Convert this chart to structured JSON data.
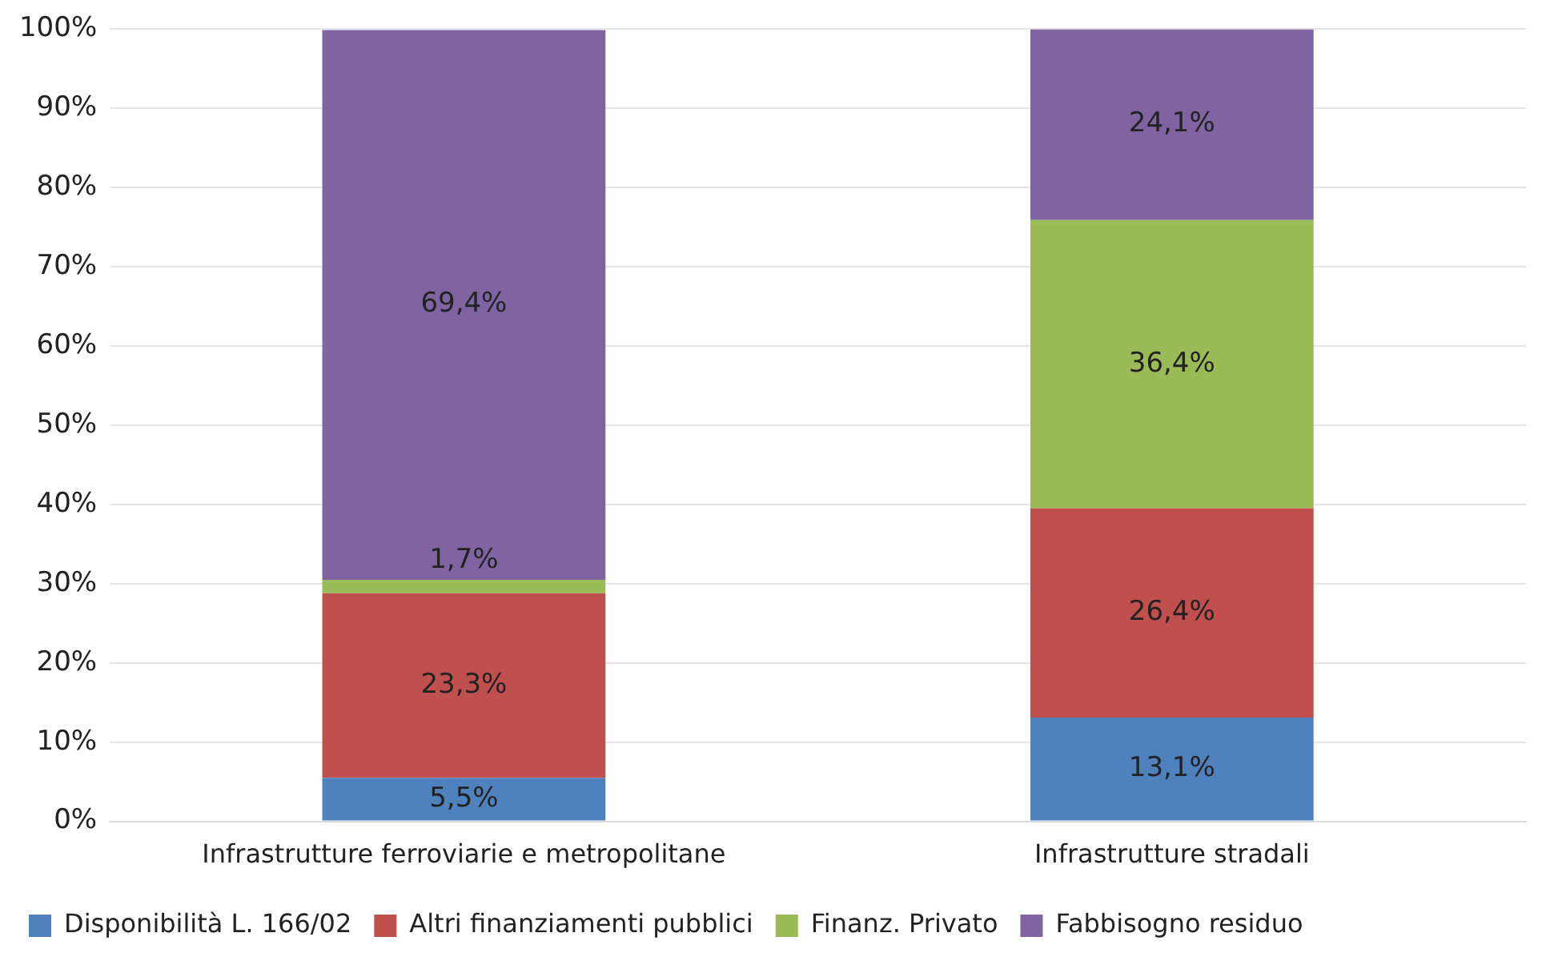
{
  "chart_data": {
    "type": "bar",
    "stacked": true,
    "categories": [
      "Infrastrutture ferroviarie e metropolitane",
      "Infrastrutture stradali"
    ],
    "series": [
      {
        "name": "Disponibilità L. 166/02",
        "color": "#4f81bd",
        "values": [
          5.5,
          13.1
        ],
        "value_labels": [
          "5,5%",
          "13,1%"
        ]
      },
      {
        "name": "Altri finanziamenti pubblici",
        "color": "#c0504d",
        "values": [
          23.3,
          26.4
        ],
        "value_labels": [
          "23,3%",
          "26,4%"
        ]
      },
      {
        "name": "Finanz. Privato",
        "color": "#9bbb59",
        "values": [
          1.7,
          36.4
        ],
        "value_labels": [
          "1,7%",
          "36,4%"
        ]
      },
      {
        "name": "Fabbisogno residuo",
        "color": "#8064a2",
        "values": [
          69.4,
          24.1
        ],
        "value_labels": [
          "69,4%",
          "24,1%"
        ]
      }
    ],
    "ylim": [
      0,
      100
    ],
    "yticks": [
      {
        "value": 0,
        "label": "0%"
      },
      {
        "value": 10,
        "label": "10%"
      },
      {
        "value": 20,
        "label": "20%"
      },
      {
        "value": 30,
        "label": "30%"
      },
      {
        "value": 40,
        "label": "40%"
      },
      {
        "value": 50,
        "label": "50%"
      },
      {
        "value": 60,
        "label": "60%"
      },
      {
        "value": 70,
        "label": "70%"
      },
      {
        "value": 80,
        "label": "80%"
      },
      {
        "value": 90,
        "label": "90%"
      },
      {
        "value": 100,
        "label": "100%"
      }
    ],
    "grid": "y",
    "legend": "bottom left"
  }
}
